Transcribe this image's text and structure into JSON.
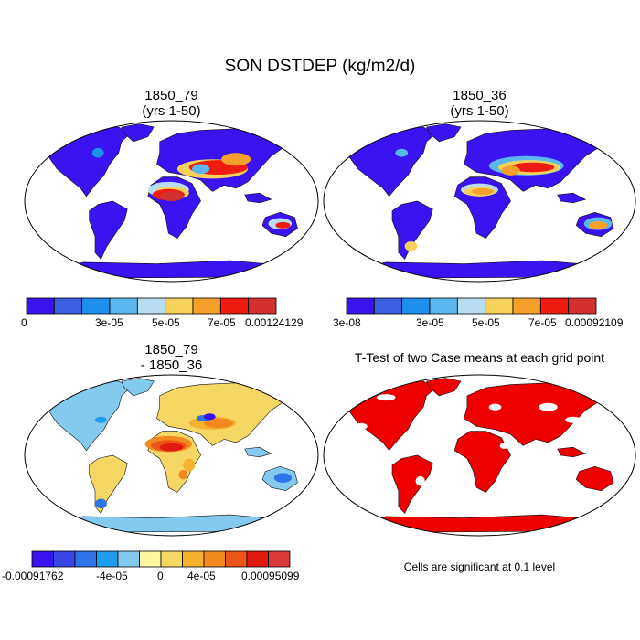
{
  "main_title": "SON DSTDEP (kg/m2/d)",
  "colors": {
    "seq": [
      "#3b12f0",
      "#3d5ee0",
      "#1e90ee",
      "#5bb8ee",
      "#b8dcf0",
      "#f7d15a",
      "#f5a02a",
      "#ee1c10",
      "#d33030"
    ],
    "diff": [
      "#3b12f0",
      "#3a47e6",
      "#2f74e8",
      "#1e9cee",
      "#84c9ee",
      "#fdf5a0",
      "#f7d764",
      "#f4b22e",
      "#f08a1e",
      "#ee5518",
      "#e01b10",
      "#d83a3a"
    ],
    "ttest": "#ee0000"
  },
  "panels": [
    {
      "id": "case1",
      "title_line1": "1850_79",
      "title_line2": "(yrs 1-50)",
      "colorbar": {
        "labels": [
          "0",
          "3e-05",
          "5e-05",
          "7e-05",
          "0.00124129"
        ]
      }
    },
    {
      "id": "case2",
      "title_line1": "1850_36",
      "title_line2": "(yrs 1-50)",
      "colorbar": {
        "labels": [
          "3e-08",
          "3e-05",
          "5e-05",
          "7e-05",
          "0.00092109"
        ]
      }
    },
    {
      "id": "diff",
      "title_line1": "1850_79",
      "title_line2": "- 1850_36",
      "colorbar": {
        "labels": [
          "-0.00091762",
          "-4e-05",
          "0",
          "4e-05",
          "0.00095099"
        ]
      }
    },
    {
      "id": "ttest",
      "title_line1": "T-Test of two Case means at each grid point",
      "title_line2": "",
      "note": "Cells are significant at 0.1 level"
    }
  ]
}
